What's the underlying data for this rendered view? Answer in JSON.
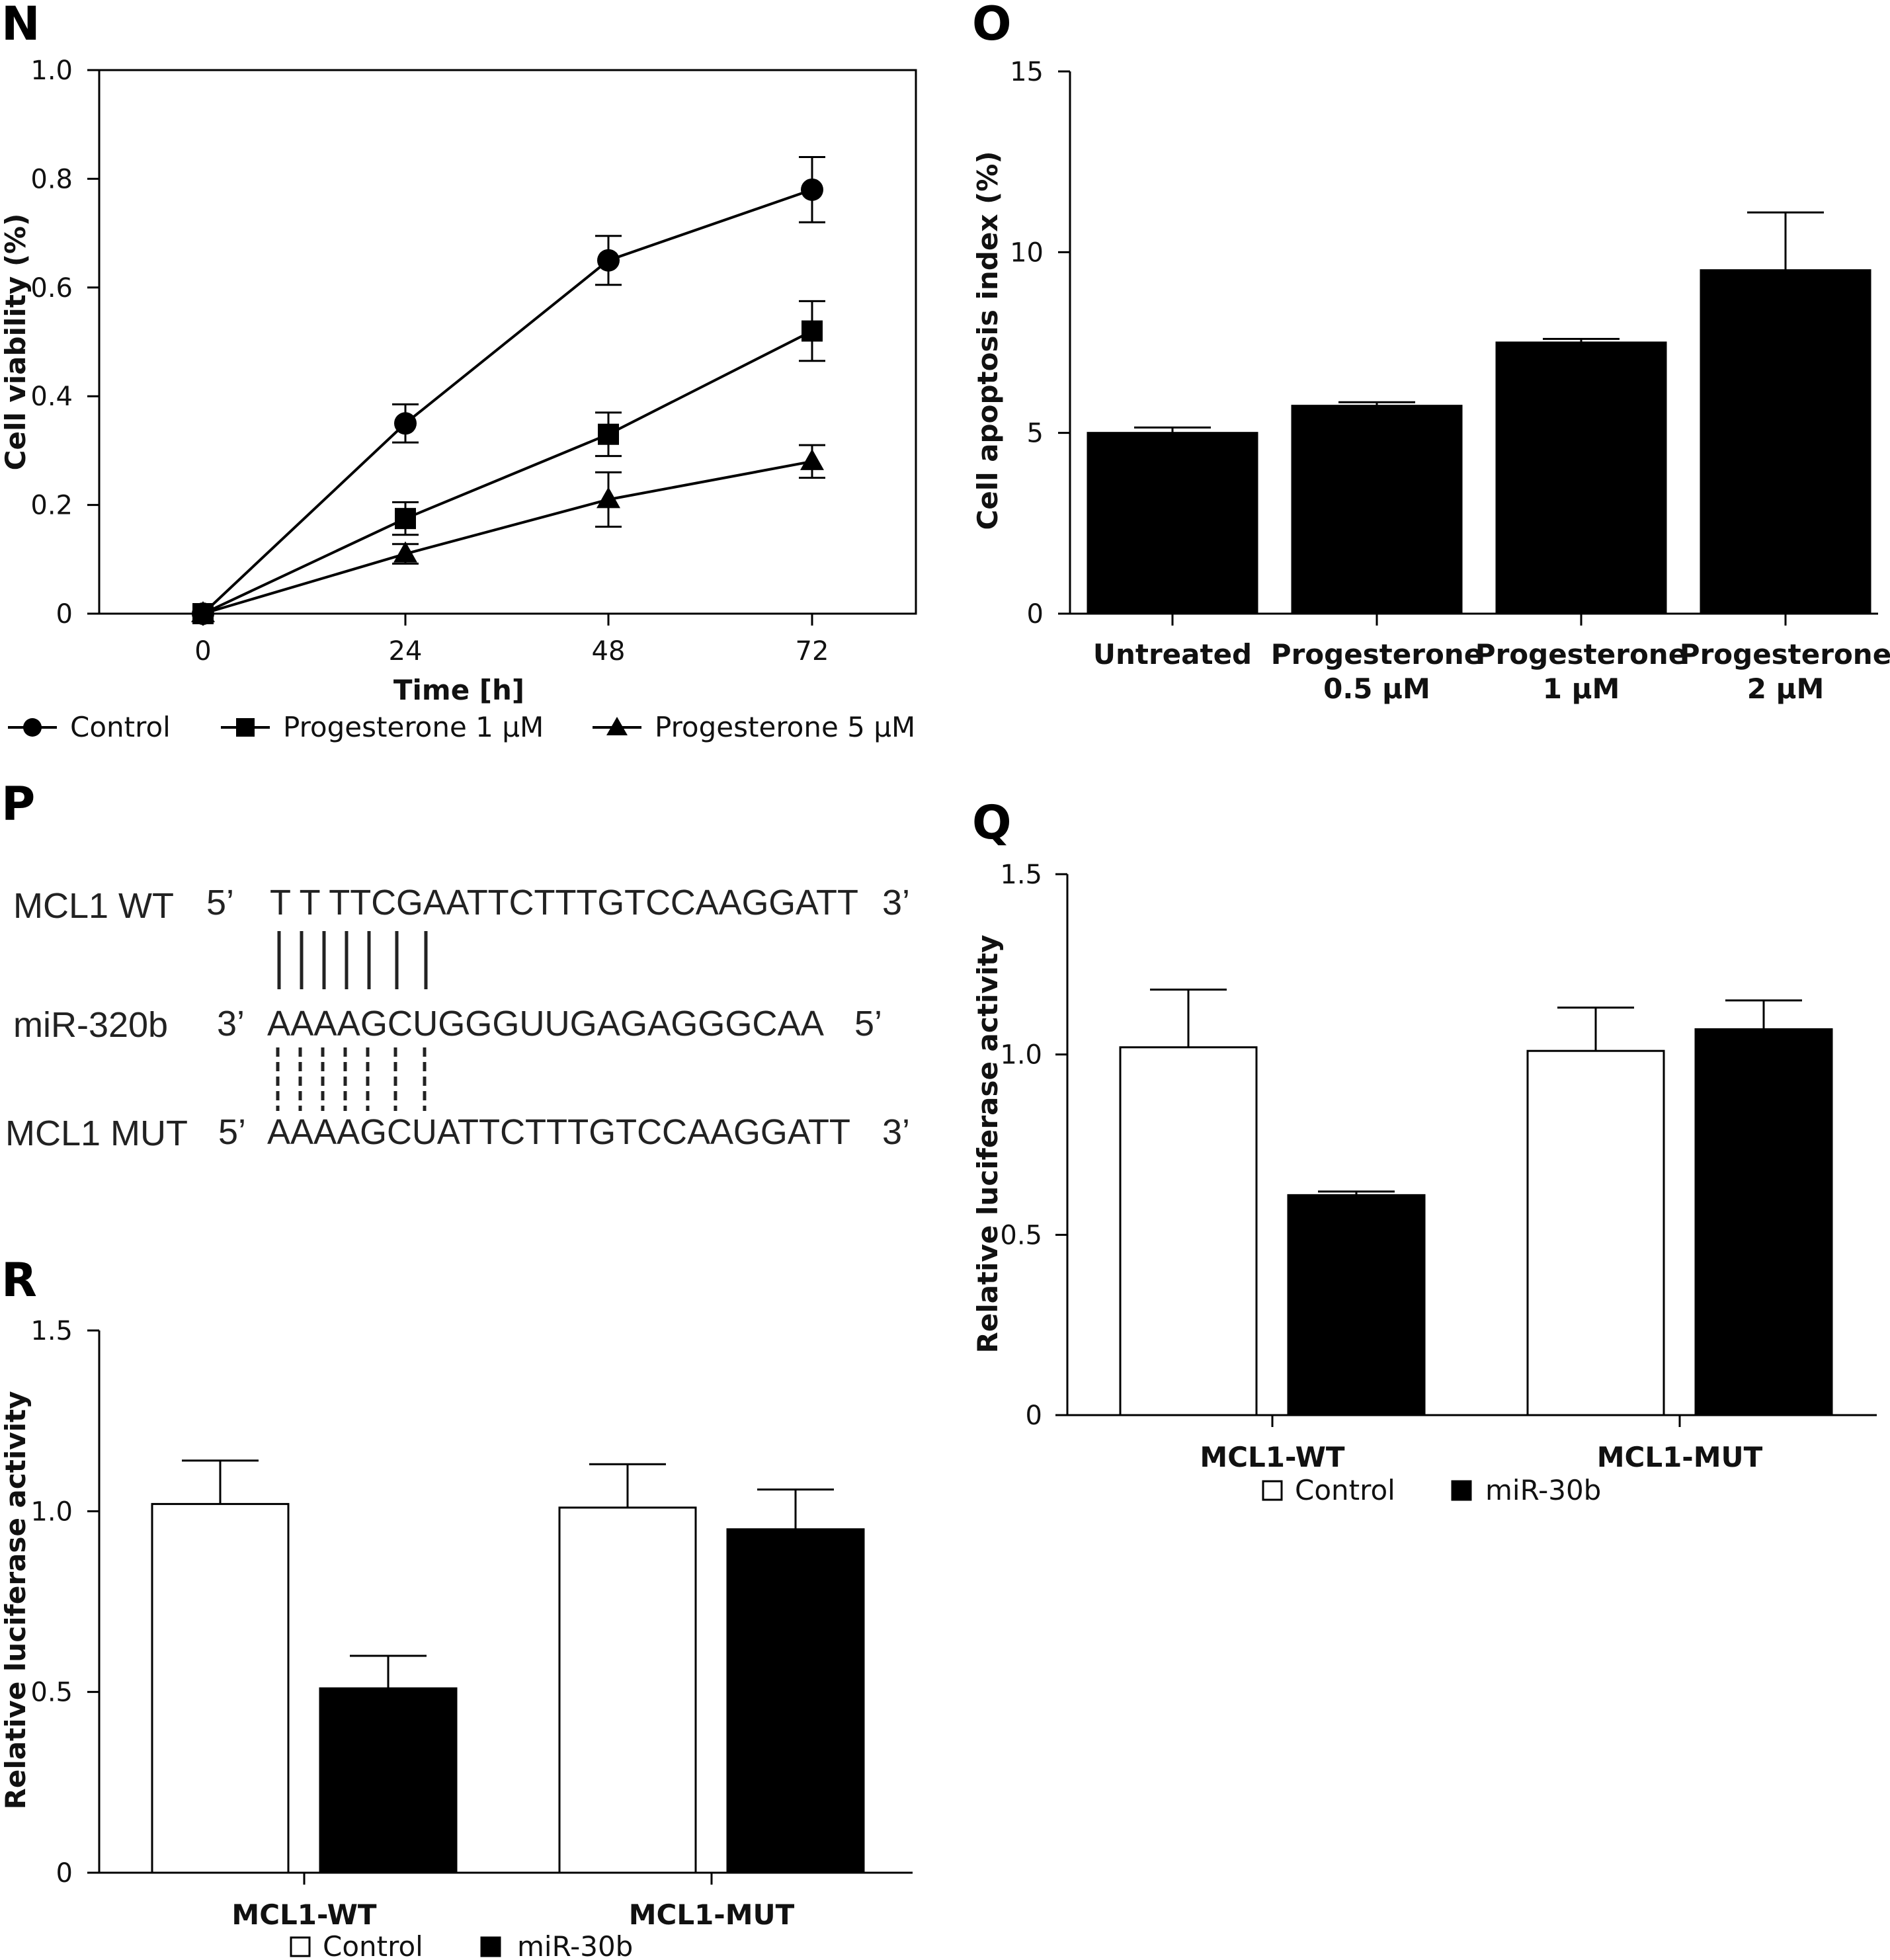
{
  "panels": {
    "N": {
      "letter": "N",
      "chart_data": {
        "type": "line",
        "xlabel": "Time [h]",
        "ylabel": "Cell viability (%)",
        "x": [
          0,
          24,
          48,
          72
        ],
        "x_tick_labels": [
          "0",
          "24",
          "48",
          "72"
        ],
        "ylim": [
          0,
          1.0
        ],
        "y_ticks": [
          "0",
          "0.2",
          "0.4",
          "0.6",
          "0.8",
          "1.0"
        ],
        "y_tick_values": [
          0,
          0.2,
          0.4,
          0.6,
          0.8,
          1.0
        ],
        "legend_position": "bottom",
        "series": [
          {
            "name": "Control",
            "marker": "circle",
            "values": [
              0,
              0.35,
              0.65,
              0.78
            ],
            "errors": [
              0,
              0.035,
              0.045,
              0.06
            ]
          },
          {
            "name": "Progesterone 1 μM",
            "marker": "square",
            "values": [
              0,
              0.175,
              0.33,
              0.52
            ],
            "errors": [
              0,
              0.03,
              0.04,
              0.055
            ]
          },
          {
            "name": "Progesterone 5 μM",
            "marker": "triangle",
            "values": [
              0,
              0.11,
              0.21,
              0.28
            ],
            "errors": [
              0,
              0.018,
              0.05,
              0.03
            ]
          }
        ]
      }
    },
    "O": {
      "letter": "O",
      "chart_data": {
        "type": "bar",
        "ylabel": "Cell apoptosis index (%)",
        "categories": [
          [
            "Untreated"
          ],
          [
            "Progesterone",
            "0.5 μM"
          ],
          [
            "Progesterone",
            "1 μM"
          ],
          [
            "Progesterone",
            "2 μM"
          ]
        ],
        "values": [
          5.0,
          5.75,
          7.5,
          9.5
        ],
        "errors": [
          0.15,
          0.1,
          0.1,
          1.6
        ],
        "ylim": [
          0,
          15
        ],
        "y_ticks": [
          "0",
          "5",
          "10",
          "15"
        ],
        "y_tick_values": [
          0,
          5,
          10,
          15
        ],
        "color": "#000000"
      }
    },
    "P": {
      "letter": "P",
      "rows": [
        {
          "label": "MCL1 WT",
          "left_end": "5’",
          "sequence": "T T TTCGAATTCTTTGTCCAAGGATT",
          "right_end": "3’"
        },
        {
          "label": "miR-320b",
          "left_end": "3’",
          "sequence": "AAAAGCUGGGUUGAGAGGGCAA",
          "right_end": "5’"
        },
        {
          "label": "MCL1 MUT",
          "left_end": "5’",
          "sequence": "AAAAGCUATTCTTTGTCCAAGGATT",
          "right_end": "3’"
        }
      ]
    },
    "Q": {
      "letter": "Q",
      "chart_data": {
        "type": "bar",
        "ylabel": "Relative luciferase activity",
        "categories": [
          "MCL1-WT",
          "MCL1-MUT"
        ],
        "ylim": [
          0,
          1.5
        ],
        "y_ticks": [
          "0",
          "0.5",
          "1.0",
          "1.5"
        ],
        "y_tick_values": [
          0,
          0.5,
          1.0,
          1.5
        ],
        "legend_position": "bottom",
        "series": [
          {
            "name": "Control",
            "color": "#ffffff",
            "values": [
              1.02,
              1.01
            ],
            "errors": [
              0.16,
              0.12
            ]
          },
          {
            "name": "miR-30b",
            "color": "#000000",
            "values": [
              0.61,
              1.07
            ],
            "errors": [
              0.01,
              0.08
            ]
          }
        ]
      }
    },
    "R": {
      "letter": "R",
      "chart_data": {
        "type": "bar",
        "ylabel": "Relative luciferase activity",
        "categories": [
          "MCL1-WT",
          "MCL1-MUT"
        ],
        "ylim": [
          0,
          1.5
        ],
        "y_ticks": [
          "0",
          "0.5",
          "1.0",
          "1.5"
        ],
        "y_tick_values": [
          0,
          0.5,
          1.0,
          1.5
        ],
        "legend_position": "bottom",
        "series": [
          {
            "name": "Control",
            "color": "#ffffff",
            "values": [
              1.02,
              1.01
            ],
            "errors": [
              0.12,
              0.12
            ]
          },
          {
            "name": "miR-30b",
            "color": "#000000",
            "values": [
              0.51,
              0.95
            ],
            "errors": [
              0.09,
              0.11
            ]
          }
        ]
      }
    }
  }
}
